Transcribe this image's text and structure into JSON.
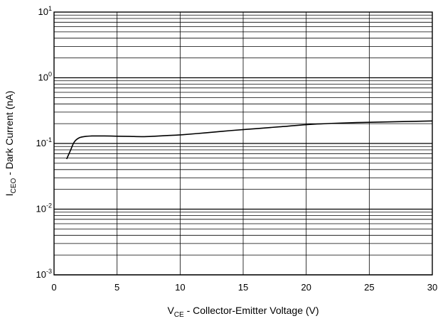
{
  "chart_data": {
    "type": "line",
    "xlabel": {
      "main": "V",
      "sub": "CE",
      "rest": " - Collector-Emitter Voltage (V)"
    },
    "ylabel": {
      "main": "I",
      "sub": "CEO",
      "rest": " - Dark Current (nA)"
    },
    "xlim": [
      0,
      30
    ],
    "ylim": [
      0.001,
      10
    ],
    "yscale": "log",
    "grid": true,
    "x_ticks": [
      "0",
      "5",
      "10",
      "15",
      "20",
      "25",
      "30"
    ],
    "y_ticks": [
      {
        "base": "10",
        "exp": "1"
      },
      {
        "base": "10",
        "exp": "0"
      },
      {
        "base": "10",
        "exp": "-1"
      },
      {
        "base": "10",
        "exp": "-2"
      },
      {
        "base": "10",
        "exp": "-3"
      }
    ],
    "series": [
      {
        "x": [
          1.0,
          1.3,
          1.6,
          2.0,
          2.5,
          3.0,
          4.0,
          5.0,
          6.0,
          7.0,
          8.0,
          9.0,
          10.0,
          12.0,
          14.0,
          16.0,
          18.0,
          20.0,
          22.0,
          24.0,
          26.0,
          28.0,
          30.0
        ],
        "y": [
          0.058,
          0.078,
          0.105,
          0.122,
          0.128,
          0.13,
          0.13,
          0.129,
          0.128,
          0.127,
          0.129,
          0.132,
          0.135,
          0.145,
          0.157,
          0.168,
          0.18,
          0.193,
          0.202,
          0.208,
          0.212,
          0.216,
          0.22
        ],
        "color": "#000000"
      }
    ]
  }
}
